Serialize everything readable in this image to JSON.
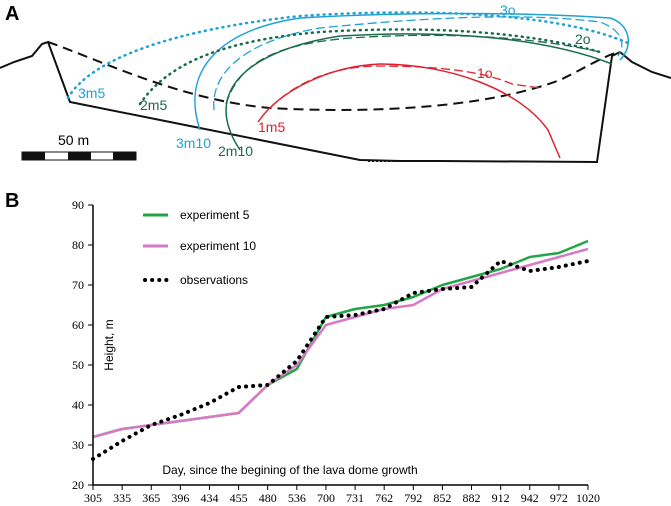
{
  "panels": {
    "a": {
      "label": "A",
      "scale_bar": "50 m",
      "profile_labels": {
        "p3o": "3o",
        "p2o": "2o",
        "p1o": "1o",
        "p3m5": "3m5",
        "p2m5": "2m5",
        "p3m10": "3m10",
        "p2m10": "2m10",
        "p1m5": "1m5"
      },
      "colors": {
        "cyan": "#1ea2d6",
        "green": "#1b6b4b",
        "red": "#e0202f",
        "black": "#111111"
      }
    },
    "b": {
      "label": "B"
    }
  },
  "chart_data": {
    "type": "line",
    "title": "",
    "xlabel": "Day, since the begining of the lava dome growth",
    "ylabel": "Height, m",
    "categories": [
      "305",
      "335",
      "365",
      "396",
      "434",
      "455",
      "480",
      "536",
      "700",
      "731",
      "762",
      "792",
      "852",
      "882",
      "912",
      "942",
      "972",
      "1020"
    ],
    "ylim": [
      20,
      90
    ],
    "yticks": [
      20,
      30,
      40,
      50,
      60,
      70,
      80,
      90
    ],
    "legend_position": "top-left",
    "series": [
      {
        "name": "experiment 5",
        "style": "solid",
        "color": "#22a645",
        "values": [
          32,
          34,
          35,
          36,
          37,
          38,
          45,
          49,
          62,
          64,
          65,
          67,
          70,
          72,
          74,
          77,
          78,
          81
        ]
      },
      {
        "name": "experiment 10",
        "style": "solid",
        "color": "#d77ac6",
        "values": [
          32,
          34,
          35,
          36,
          37,
          38,
          45,
          50,
          60,
          62,
          64,
          65,
          69,
          71,
          73,
          75,
          77,
          79
        ]
      },
      {
        "name": "observations",
        "style": "dotted",
        "color": "#000000",
        "values": [
          26.5,
          31,
          35,
          37.5,
          40.5,
          44.5,
          45,
          51,
          62,
          62.5,
          64,
          68,
          69,
          69.5,
          76,
          73.5,
          74.5,
          76
        ]
      }
    ]
  }
}
